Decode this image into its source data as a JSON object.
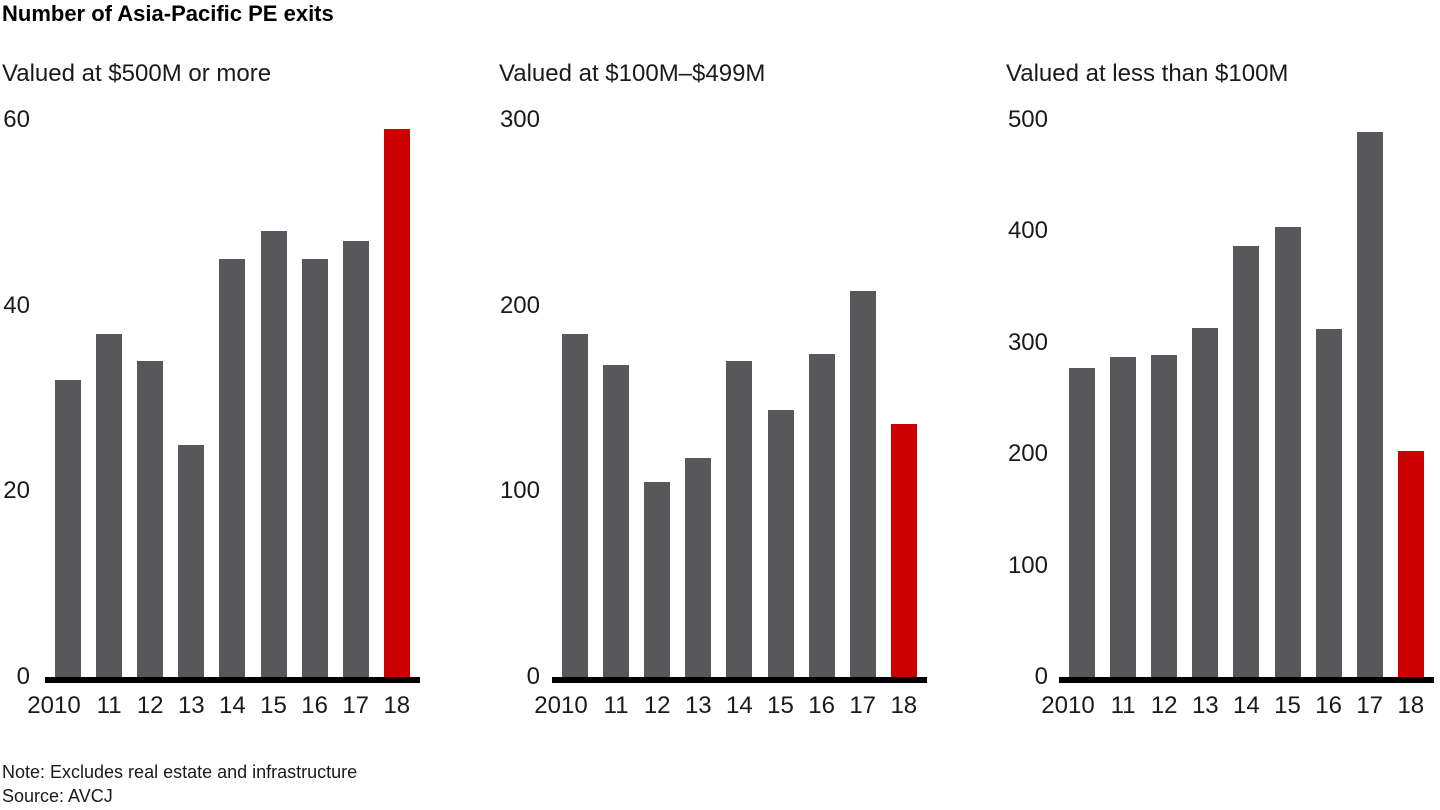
{
  "title": "Number of Asia-Pacific PE exits",
  "note": "Note: Excludes real estate and infrastructure",
  "source": "Source: AVCJ",
  "colors": {
    "bar": "#58585a",
    "highlight": "#cc0000",
    "axis": "#000000",
    "text": "#1a1a1a"
  },
  "chart_data": [
    {
      "type": "bar",
      "title": "Valued at $500M or more",
      "categories": [
        "2010",
        "11",
        "12",
        "13",
        "14",
        "15",
        "16",
        "17",
        "18"
      ],
      "values": [
        32,
        37,
        34,
        25,
        45,
        48,
        45,
        47,
        59
      ],
      "ylim": [
        0,
        60
      ],
      "ytick_step": 20,
      "yticks": [
        0,
        20,
        40,
        60
      ],
      "highlight_index": 8,
      "grid": false,
      "legend": "none",
      "xlabel": "",
      "ylabel": ""
    },
    {
      "type": "bar",
      "title": "Valued at $100M–$499M",
      "categories": [
        "2010",
        "11",
        "12",
        "13",
        "14",
        "15",
        "16",
        "17",
        "18"
      ],
      "values": [
        185,
        168,
        105,
        118,
        170,
        144,
        174,
        208,
        136
      ],
      "ylim": [
        0,
        300
      ],
      "ytick_step": 100,
      "yticks": [
        0,
        100,
        200,
        300
      ],
      "highlight_index": 8,
      "grid": false,
      "legend": "none",
      "xlabel": "",
      "ylabel": ""
    },
    {
      "type": "bar",
      "title": "Valued at less than $100M",
      "categories": [
        "2010",
        "11",
        "12",
        "13",
        "14",
        "15",
        "16",
        "17",
        "18"
      ],
      "values": [
        277,
        287,
        289,
        313,
        387,
        404,
        312,
        489,
        203
      ],
      "ylim": [
        0,
        500
      ],
      "ytick_step": 100,
      "yticks": [
        0,
        100,
        200,
        300,
        400,
        500
      ],
      "highlight_index": 8,
      "grid": false,
      "legend": "none",
      "xlabel": "",
      "ylabel": ""
    }
  ]
}
